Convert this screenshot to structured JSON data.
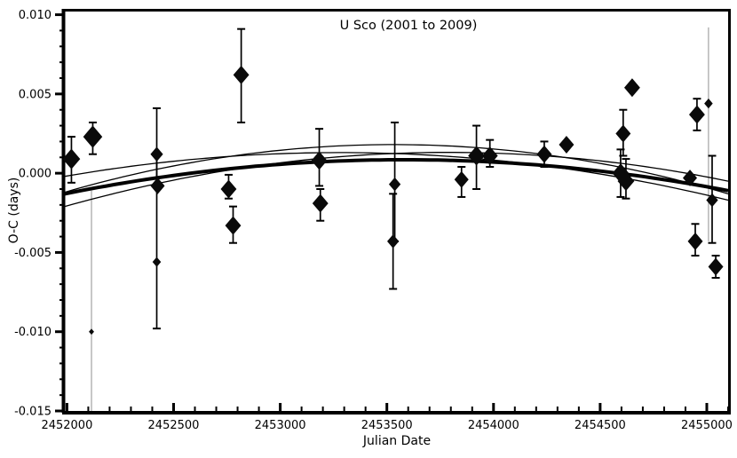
{
  "chart_data": {
    "type": "scatter",
    "title": "U Sco (2001 to 2009)",
    "xlabel": "Julian Date",
    "ylabel": "O-C (days)",
    "x_range": [
      2451990,
      2455100
    ],
    "y_range": [
      -0.015,
      0.0102
    ],
    "grid": false,
    "legend": "none",
    "x_ticks": [
      {
        "v": 2452000,
        "label": "2452000"
      },
      {
        "v": 2452500,
        "label": "2452500"
      },
      {
        "v": 2453000,
        "label": "2453000"
      },
      {
        "v": 2453500,
        "label": "2453500"
      },
      {
        "v": 2454000,
        "label": "2454000"
      },
      {
        "v": 2454500,
        "label": "2454500"
      },
      {
        "v": 2455000,
        "label": "2455000"
      }
    ],
    "x_minor_step": 100,
    "y_ticks": [
      {
        "v": 0.01,
        "label": "0.010"
      },
      {
        "v": 0.005,
        "label": "0.005"
      },
      {
        "v": 0.0,
        "label": "0.000"
      },
      {
        "v": -0.005,
        "label": "-0.005"
      },
      {
        "v": -0.01,
        "label": "-0.010"
      },
      {
        "v": -0.015,
        "label": "-0.015"
      }
    ],
    "y_minor_step": 0.001,
    "point_color": "#0a0a0a",
    "gray_bar_color": "#9a9a9a",
    "points": [
      {
        "jd": 2452021,
        "oc": 0.0009,
        "s": 10,
        "bar": [
          -0.0006,
          0.0023
        ]
      },
      {
        "jd": 2452115,
        "oc": -0.01,
        "s": 2.5,
        "bar": [
          -0.015,
          -0.0011
        ],
        "gray": true
      },
      {
        "jd": 2452121,
        "oc": 0.0023,
        "s": 11,
        "bar": [
          0.0012,
          0.0032
        ]
      },
      {
        "jd": 2452421,
        "oc": 0.0012,
        "s": 7,
        "bar": [
          -0.0008,
          0.0041
        ]
      },
      {
        "jd": 2452425,
        "oc": -0.0008,
        "s": 8,
        "bar": null
      },
      {
        "jd": 2452421,
        "oc": -0.0056,
        "s": 4.5,
        "bar": [
          -0.0098,
          0.0012
        ]
      },
      {
        "jd": 2452758,
        "oc": -0.001,
        "s": 9,
        "bar": [
          -0.0016,
          -0.0001
        ]
      },
      {
        "jd": 2452779,
        "oc": -0.0033,
        "s": 9,
        "bar": [
          -0.0044,
          -0.0021
        ]
      },
      {
        "jd": 2452817,
        "oc": 0.0062,
        "s": 9,
        "bar": [
          0.0032,
          0.0091
        ]
      },
      {
        "jd": 2453183,
        "oc": 0.0008,
        "s": 9,
        "bar": [
          -0.0008,
          0.0028
        ]
      },
      {
        "jd": 2453188,
        "oc": -0.0019,
        "s": 9,
        "bar": [
          -0.003,
          -0.001
        ]
      },
      {
        "jd": 2453537,
        "oc": -0.0007,
        "s": 6.5,
        "bar": [
          -0.0043,
          0.0032
        ]
      },
      {
        "jd": 2453529,
        "oc": -0.0043,
        "s": 6.5,
        "bar": [
          -0.0073,
          -0.0013
        ]
      },
      {
        "jd": 2453850,
        "oc": -0.0004,
        "s": 8,
        "bar": [
          -0.0015,
          0.0004
        ]
      },
      {
        "jd": 2453920,
        "oc": 0.0011,
        "s": 9.5,
        "bar": [
          -0.001,
          0.003
        ]
      },
      {
        "jd": 2453983,
        "oc": 0.0011,
        "s": 9,
        "bar": [
          0.0004,
          0.0021
        ]
      },
      {
        "jd": 2454238,
        "oc": 0.0012,
        "s": 8.5,
        "bar": [
          0.0004,
          0.002
        ]
      },
      {
        "jd": 2454342,
        "oc": 0.0018,
        "s": 8.5,
        "bar": null
      },
      {
        "jd": 2454608,
        "oc": 0.0025,
        "s": 8.5,
        "bar": [
          0.0011,
          0.004
        ]
      },
      {
        "jd": 2454650,
        "oc": 0.0054,
        "s": 9,
        "bar": null
      },
      {
        "jd": 2454596,
        "oc": 0.0,
        "s": 9.5,
        "bar": [
          -0.0015,
          0.0015
        ]
      },
      {
        "jd": 2454621,
        "oc": -0.0005,
        "s": 9.5,
        "bar": [
          -0.0016,
          0.0009
        ]
      },
      {
        "jd": 2454921,
        "oc": -0.0003,
        "s": 8,
        "bar": null
      },
      {
        "jd": 2454954,
        "oc": 0.0037,
        "s": 9,
        "bar": [
          0.0027,
          0.0047
        ]
      },
      {
        "jd": 2455008,
        "oc": 0.0044,
        "s": 4.5,
        "bar": [
          -0.0043,
          0.0092
        ],
        "gray": true
      },
      {
        "jd": 2455025,
        "oc": -0.0017,
        "s": 6.5,
        "bar": [
          -0.0044,
          0.0011
        ]
      },
      {
        "jd": 2454946,
        "oc": -0.0043,
        "s": 8.5,
        "bar": [
          -0.0052,
          -0.0032
        ]
      },
      {
        "jd": 2455042,
        "oc": -0.0059,
        "s": 8.5,
        "bar": [
          -0.0066,
          -0.0052
        ]
      }
    ],
    "fit_curves": [
      {
        "name": "fit-envelope-1",
        "width": 1.3,
        "pts": [
          [
            2451990,
            -0.0002
          ],
          [
            2453300,
            0.0013
          ],
          [
            2455100,
            -0.0017
          ]
        ]
      },
      {
        "name": "fit-envelope-2",
        "width": 1.3,
        "pts": [
          [
            2451990,
            -0.0021
          ],
          [
            2453900,
            0.0013
          ],
          [
            2455100,
            -0.0005
          ]
        ]
      },
      {
        "name": "fit-envelope-3",
        "width": 1.3,
        "pts": [
          [
            2451990,
            -0.0012
          ],
          [
            2453600,
            0.0018
          ],
          [
            2455100,
            -0.0013
          ]
        ]
      },
      {
        "name": "fit-best",
        "width": 4.0,
        "pts": [
          [
            2451990,
            -0.0013
          ],
          [
            2453600,
            0.00085
          ],
          [
            2455100,
            -0.0011
          ]
        ]
      }
    ]
  }
}
